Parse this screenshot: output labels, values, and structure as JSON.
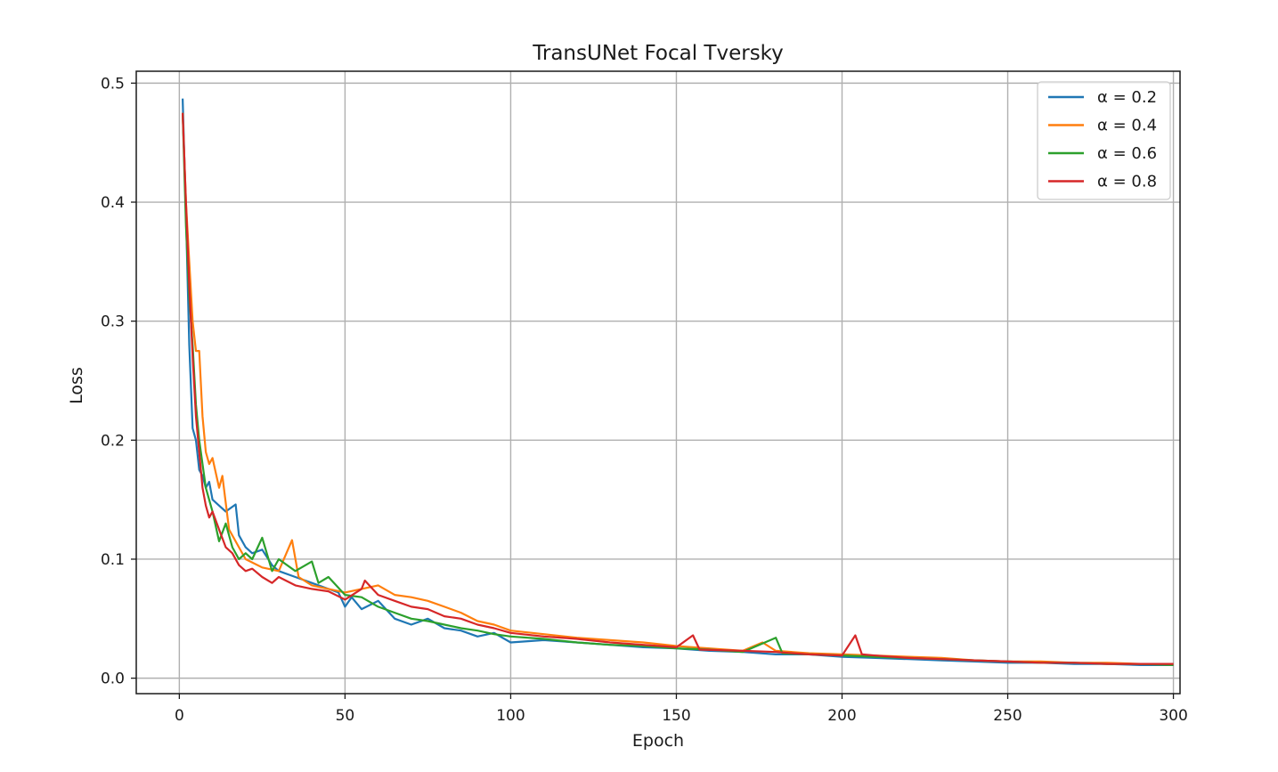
{
  "chart_data": {
    "type": "line",
    "title": "TransUNet Focal Tversky",
    "xlabel": "Epoch",
    "ylabel": "Loss",
    "xlim": [
      -13,
      302
    ],
    "ylim": [
      -0.013,
      0.51
    ],
    "xticks": [
      0,
      50,
      100,
      150,
      200,
      250,
      300
    ],
    "yticks": [
      0.0,
      0.1,
      0.2,
      0.3,
      0.4,
      0.5
    ],
    "xtick_labels": [
      "0",
      "50",
      "100",
      "150",
      "200",
      "250",
      "300"
    ],
    "ytick_labels": [
      "0.0",
      "0.1",
      "0.2",
      "0.3",
      "0.4",
      "0.5"
    ],
    "grid": true,
    "legend_position": "upper right",
    "series": [
      {
        "name": "α = 0.2",
        "color": "#1f77b4",
        "points": [
          [
            1,
            0.487
          ],
          [
            2,
            0.39
          ],
          [
            3,
            0.28
          ],
          [
            4,
            0.21
          ],
          [
            5,
            0.2
          ],
          [
            6,
            0.175
          ],
          [
            7,
            0.17
          ],
          [
            8,
            0.16
          ],
          [
            9,
            0.165
          ],
          [
            10,
            0.15
          ],
          [
            12,
            0.145
          ],
          [
            14,
            0.14
          ],
          [
            17,
            0.146
          ],
          [
            18,
            0.12
          ],
          [
            20,
            0.11
          ],
          [
            22,
            0.105
          ],
          [
            25,
            0.108
          ],
          [
            28,
            0.095
          ],
          [
            30,
            0.09
          ],
          [
            35,
            0.085
          ],
          [
            40,
            0.08
          ],
          [
            45,
            0.075
          ],
          [
            48,
            0.072
          ],
          [
            50,
            0.06
          ],
          [
            52,
            0.068
          ],
          [
            55,
            0.058
          ],
          [
            60,
            0.065
          ],
          [
            65,
            0.05
          ],
          [
            70,
            0.045
          ],
          [
            75,
            0.05
          ],
          [
            80,
            0.042
          ],
          [
            85,
            0.04
          ],
          [
            90,
            0.035
          ],
          [
            95,
            0.038
          ],
          [
            100,
            0.03
          ],
          [
            110,
            0.032
          ],
          [
            120,
            0.03
          ],
          [
            130,
            0.028
          ],
          [
            140,
            0.026
          ],
          [
            150,
            0.025
          ],
          [
            160,
            0.023
          ],
          [
            170,
            0.022
          ],
          [
            180,
            0.02
          ],
          [
            190,
            0.02
          ],
          [
            200,
            0.018
          ],
          [
            210,
            0.017
          ],
          [
            220,
            0.016
          ],
          [
            230,
            0.015
          ],
          [
            240,
            0.014
          ],
          [
            250,
            0.013
          ],
          [
            260,
            0.013
          ],
          [
            270,
            0.012
          ],
          [
            280,
            0.012
          ],
          [
            290,
            0.011
          ],
          [
            300,
            0.011
          ]
        ]
      },
      {
        "name": "α = 0.4",
        "color": "#ff7f0e",
        "points": [
          [
            1,
            0.475
          ],
          [
            2,
            0.4
          ],
          [
            3,
            0.35
          ],
          [
            4,
            0.3
          ],
          [
            5,
            0.275
          ],
          [
            6,
            0.275
          ],
          [
            7,
            0.22
          ],
          [
            8,
            0.19
          ],
          [
            9,
            0.18
          ],
          [
            10,
            0.185
          ],
          [
            12,
            0.16
          ],
          [
            13,
            0.17
          ],
          [
            15,
            0.125
          ],
          [
            18,
            0.11
          ],
          [
            20,
            0.1
          ],
          [
            25,
            0.093
          ],
          [
            30,
            0.09
          ],
          [
            34,
            0.116
          ],
          [
            36,
            0.085
          ],
          [
            40,
            0.078
          ],
          [
            45,
            0.075
          ],
          [
            50,
            0.072
          ],
          [
            55,
            0.075
          ],
          [
            60,
            0.078
          ],
          [
            65,
            0.07
          ],
          [
            70,
            0.068
          ],
          [
            75,
            0.065
          ],
          [
            80,
            0.06
          ],
          [
            85,
            0.055
          ],
          [
            90,
            0.048
          ],
          [
            95,
            0.045
          ],
          [
            100,
            0.04
          ],
          [
            110,
            0.037
          ],
          [
            120,
            0.034
          ],
          [
            130,
            0.032
          ],
          [
            140,
            0.03
          ],
          [
            150,
            0.027
          ],
          [
            160,
            0.025
          ],
          [
            170,
            0.023
          ],
          [
            176,
            0.03
          ],
          [
            180,
            0.023
          ],
          [
            190,
            0.021
          ],
          [
            200,
            0.02
          ],
          [
            210,
            0.019
          ],
          [
            220,
            0.018
          ],
          [
            230,
            0.017
          ],
          [
            240,
            0.015
          ],
          [
            250,
            0.014
          ],
          [
            260,
            0.014
          ],
          [
            270,
            0.013
          ],
          [
            280,
            0.013
          ],
          [
            290,
            0.012
          ],
          [
            300,
            0.012
          ]
        ]
      },
      {
        "name": "α = 0.6",
        "color": "#2ca02c",
        "points": [
          [
            1,
            0.475
          ],
          [
            2,
            0.38
          ],
          [
            3,
            0.32
          ],
          [
            4,
            0.28
          ],
          [
            5,
            0.23
          ],
          [
            6,
            0.2
          ],
          [
            7,
            0.18
          ],
          [
            8,
            0.16
          ],
          [
            10,
            0.14
          ],
          [
            12,
            0.115
          ],
          [
            14,
            0.13
          ],
          [
            16,
            0.11
          ],
          [
            18,
            0.1
          ],
          [
            20,
            0.105
          ],
          [
            22,
            0.1
          ],
          [
            25,
            0.118
          ],
          [
            28,
            0.09
          ],
          [
            30,
            0.1
          ],
          [
            35,
            0.09
          ],
          [
            40,
            0.098
          ],
          [
            42,
            0.08
          ],
          [
            45,
            0.085
          ],
          [
            50,
            0.07
          ],
          [
            55,
            0.068
          ],
          [
            60,
            0.06
          ],
          [
            65,
            0.055
          ],
          [
            70,
            0.05
          ],
          [
            75,
            0.048
          ],
          [
            80,
            0.045
          ],
          [
            85,
            0.042
          ],
          [
            90,
            0.04
          ],
          [
            95,
            0.037
          ],
          [
            100,
            0.035
          ],
          [
            110,
            0.033
          ],
          [
            120,
            0.03
          ],
          [
            130,
            0.028
          ],
          [
            140,
            0.027
          ],
          [
            150,
            0.025
          ],
          [
            160,
            0.024
          ],
          [
            170,
            0.022
          ],
          [
            180,
            0.034
          ],
          [
            182,
            0.021
          ],
          [
            190,
            0.02
          ],
          [
            200,
            0.019
          ],
          [
            210,
            0.018
          ],
          [
            220,
            0.017
          ],
          [
            230,
            0.016
          ],
          [
            240,
            0.015
          ],
          [
            250,
            0.014
          ],
          [
            260,
            0.013
          ],
          [
            270,
            0.013
          ],
          [
            280,
            0.012
          ],
          [
            290,
            0.012
          ],
          [
            300,
            0.011
          ]
        ]
      },
      {
        "name": "α = 0.8",
        "color": "#d62728",
        "points": [
          [
            1,
            0.475
          ],
          [
            2,
            0.4
          ],
          [
            3,
            0.33
          ],
          [
            4,
            0.27
          ],
          [
            5,
            0.22
          ],
          [
            6,
            0.19
          ],
          [
            7,
            0.16
          ],
          [
            8,
            0.145
          ],
          [
            9,
            0.135
          ],
          [
            10,
            0.14
          ],
          [
            12,
            0.125
          ],
          [
            14,
            0.11
          ],
          [
            16,
            0.105
          ],
          [
            18,
            0.095
          ],
          [
            20,
            0.09
          ],
          [
            22,
            0.092
          ],
          [
            25,
            0.085
          ],
          [
            28,
            0.08
          ],
          [
            30,
            0.085
          ],
          [
            35,
            0.078
          ],
          [
            40,
            0.075
          ],
          [
            45,
            0.073
          ],
          [
            50,
            0.066
          ],
          [
            55,
            0.075
          ],
          [
            56,
            0.082
          ],
          [
            60,
            0.07
          ],
          [
            65,
            0.065
          ],
          [
            70,
            0.06
          ],
          [
            75,
            0.058
          ],
          [
            80,
            0.052
          ],
          [
            85,
            0.05
          ],
          [
            90,
            0.045
          ],
          [
            95,
            0.042
          ],
          [
            100,
            0.038
          ],
          [
            110,
            0.035
          ],
          [
            120,
            0.033
          ],
          [
            130,
            0.03
          ],
          [
            140,
            0.028
          ],
          [
            150,
            0.026
          ],
          [
            155,
            0.036
          ],
          [
            157,
            0.024
          ],
          [
            170,
            0.023
          ],
          [
            180,
            0.022
          ],
          [
            190,
            0.02
          ],
          [
            200,
            0.019
          ],
          [
            204,
            0.036
          ],
          [
            206,
            0.02
          ],
          [
            210,
            0.019
          ],
          [
            220,
            0.017
          ],
          [
            230,
            0.016
          ],
          [
            240,
            0.015
          ],
          [
            250,
            0.014
          ],
          [
            260,
            0.013
          ],
          [
            270,
            0.013
          ],
          [
            280,
            0.012
          ],
          [
            290,
            0.012
          ],
          [
            300,
            0.012
          ]
        ]
      }
    ]
  }
}
